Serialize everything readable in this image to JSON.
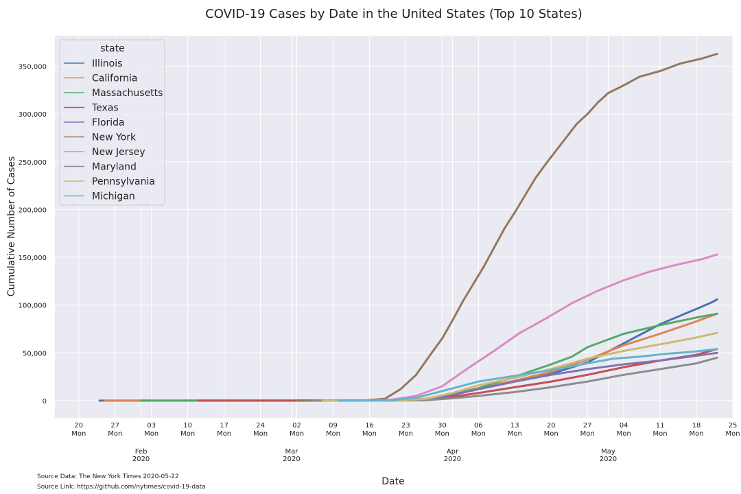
{
  "chart_data": {
    "type": "line",
    "title": "COVID-19 Cases by Date in the United States (Top 10 States)",
    "xlabel": "Date",
    "ylabel": "Cumulative Number of Cases",
    "ylim": [
      -18000,
      382000
    ],
    "xlim_days": [
      -4.6,
      126
    ],
    "date_origin": "2020-01-20",
    "y_ticks": [
      0,
      50000,
      100000,
      150000,
      200000,
      250000,
      300000,
      350000
    ],
    "y_tick_labels": [
      "0",
      "50,000",
      "100,000",
      "150,000",
      "200,000",
      "250,000",
      "300,000",
      "350,000"
    ],
    "x_ticks": [
      {
        "d": 0,
        "day": "20",
        "wd": "Mon"
      },
      {
        "d": 7,
        "day": "27",
        "wd": "Mon"
      },
      {
        "d": 14,
        "day": "03",
        "wd": "Mon"
      },
      {
        "d": 21,
        "day": "10",
        "wd": "Mon"
      },
      {
        "d": 28,
        "day": "17",
        "wd": "Mon"
      },
      {
        "d": 35,
        "day": "24",
        "wd": "Mon"
      },
      {
        "d": 42,
        "day": "02",
        "wd": "Mon"
      },
      {
        "d": 49,
        "day": "09",
        "wd": "Mon"
      },
      {
        "d": 56,
        "day": "16",
        "wd": "Mon"
      },
      {
        "d": 63,
        "day": "23",
        "wd": "Mon"
      },
      {
        "d": 70,
        "day": "30",
        "wd": "Mon"
      },
      {
        "d": 77,
        "day": "06",
        "wd": "Mon"
      },
      {
        "d": 84,
        "day": "13",
        "wd": "Mon"
      },
      {
        "d": 91,
        "day": "20",
        "wd": "Mon"
      },
      {
        "d": 98,
        "day": "27",
        "wd": "Mon"
      },
      {
        "d": 105,
        "day": "04",
        "wd": "Mon"
      },
      {
        "d": 112,
        "day": "11",
        "wd": "Mon"
      },
      {
        "d": 119,
        "day": "18",
        "wd": "Mon"
      },
      {
        "d": 126,
        "day": "25",
        "wd": "Mon"
      }
    ],
    "month_ticks": [
      {
        "d": 12,
        "month": "Feb",
        "year": "2020"
      },
      {
        "d": 41,
        "month": "Mar",
        "year": "2020"
      },
      {
        "d": 72,
        "month": "Apr",
        "year": "2020"
      },
      {
        "d": 102,
        "month": "May",
        "year": "2020"
      }
    ],
    "legend_title": "state",
    "legend_position": "top-left",
    "series": [
      {
        "name": "Illinois",
        "color": "#4c72b0",
        "start": 4,
        "points": [
          [
            4,
            0
          ],
          [
            42,
            0
          ],
          [
            60,
            300
          ],
          [
            67,
            1500
          ],
          [
            72,
            6000
          ],
          [
            77,
            12000
          ],
          [
            84,
            20000
          ],
          [
            91,
            28000
          ],
          [
            98,
            40000
          ],
          [
            105,
            60000
          ],
          [
            112,
            80000
          ],
          [
            119,
            96000
          ],
          [
            122,
            103000
          ],
          [
            123,
            106000
          ]
        ]
      },
      {
        "name": "California",
        "color": "#dd8452",
        "start": 5,
        "points": [
          [
            5,
            0
          ],
          [
            42,
            0
          ],
          [
            60,
            300
          ],
          [
            67,
            2000
          ],
          [
            72,
            7000
          ],
          [
            77,
            13000
          ],
          [
            84,
            21000
          ],
          [
            91,
            30000
          ],
          [
            98,
            43000
          ],
          [
            105,
            58000
          ],
          [
            112,
            70000
          ],
          [
            119,
            83000
          ],
          [
            123,
            91000
          ]
        ]
      },
      {
        "name": "Massachusetts",
        "color": "#55a868",
        "start": 12,
        "points": [
          [
            12,
            0
          ],
          [
            45,
            0
          ],
          [
            60,
            200
          ],
          [
            67,
            1000
          ],
          [
            72,
            6000
          ],
          [
            77,
            13000
          ],
          [
            84,
            25000
          ],
          [
            91,
            38000
          ],
          [
            95,
            46000
          ],
          [
            98,
            56000
          ],
          [
            105,
            70000
          ],
          [
            112,
            79000
          ],
          [
            119,
            87000
          ],
          [
            123,
            91000
          ]
        ]
      },
      {
        "name": "Texas",
        "color": "#c44e52",
        "start": 23,
        "points": [
          [
            23,
            0
          ],
          [
            55,
            0
          ],
          [
            60,
            200
          ],
          [
            67,
            1000
          ],
          [
            72,
            4000
          ],
          [
            77,
            8000
          ],
          [
            84,
            14000
          ],
          [
            91,
            20000
          ],
          [
            98,
            27000
          ],
          [
            105,
            35000
          ],
          [
            112,
            42000
          ],
          [
            119,
            48000
          ],
          [
            123,
            54000
          ]
        ]
      },
      {
        "name": "Florida",
        "color": "#8172b3",
        "start": 42,
        "points": [
          [
            42,
            0
          ],
          [
            55,
            0
          ],
          [
            60,
            300
          ],
          [
            67,
            1500
          ],
          [
            72,
            6000
          ],
          [
            77,
            12000
          ],
          [
            84,
            20000
          ],
          [
            91,
            27000
          ],
          [
            98,
            33000
          ],
          [
            105,
            38000
          ],
          [
            112,
            42000
          ],
          [
            119,
            47000
          ],
          [
            123,
            50000
          ]
        ]
      },
      {
        "name": "New York",
        "color": "#937860",
        "start": 42,
        "points": [
          [
            42,
            0
          ],
          [
            55,
            200
          ],
          [
            59,
            2000
          ],
          [
            62,
            12000
          ],
          [
            65,
            27000
          ],
          [
            68,
            50000
          ],
          [
            70,
            65000
          ],
          [
            72,
            84000
          ],
          [
            74,
            104000
          ],
          [
            76,
            122000
          ],
          [
            78,
            140000
          ],
          [
            80,
            160000
          ],
          [
            82,
            180000
          ],
          [
            84,
            197000
          ],
          [
            86,
            215000
          ],
          [
            88,
            233000
          ],
          [
            90,
            248000
          ],
          [
            92,
            262000
          ],
          [
            94,
            276000
          ],
          [
            96,
            290000
          ],
          [
            98,
            300000
          ],
          [
            100,
            312000
          ],
          [
            102,
            322000
          ],
          [
            105,
            330000
          ],
          [
            108,
            339000
          ],
          [
            112,
            345000
          ],
          [
            116,
            353000
          ],
          [
            120,
            358000
          ],
          [
            123,
            363000
          ]
        ]
      },
      {
        "name": "New Jersey",
        "color": "#da8bc3",
        "start": 46,
        "points": [
          [
            46,
            0
          ],
          [
            55,
            0
          ],
          [
            60,
            800
          ],
          [
            65,
            5000
          ],
          [
            70,
            15000
          ],
          [
            75,
            34000
          ],
          [
            80,
            52000
          ],
          [
            85,
            71000
          ],
          [
            90,
            86000
          ],
          [
            95,
            102000
          ],
          [
            100,
            115000
          ],
          [
            105,
            126000
          ],
          [
            110,
            135000
          ],
          [
            115,
            142000
          ],
          [
            120,
            148000
          ],
          [
            123,
            153000
          ]
        ]
      },
      {
        "name": "Maryland",
        "color": "#8c8c8c",
        "start": 45,
        "points": [
          [
            45,
            0
          ],
          [
            57,
            0
          ],
          [
            62,
            100
          ],
          [
            67,
            500
          ],
          [
            72,
            2500
          ],
          [
            77,
            5000
          ],
          [
            84,
            9000
          ],
          [
            91,
            14000
          ],
          [
            98,
            20000
          ],
          [
            105,
            27000
          ],
          [
            112,
            33000
          ],
          [
            119,
            39000
          ],
          [
            123,
            45000
          ]
        ]
      },
      {
        "name": "Pennsylvania",
        "color": "#ccb974",
        "start": 47,
        "points": [
          [
            47,
            0
          ],
          [
            57,
            0
          ],
          [
            62,
            300
          ],
          [
            67,
            2000
          ],
          [
            72,
            8000
          ],
          [
            77,
            16000
          ],
          [
            84,
            24000
          ],
          [
            91,
            33000
          ],
          [
            98,
            44000
          ],
          [
            105,
            52000
          ],
          [
            112,
            59000
          ],
          [
            119,
            66000
          ],
          [
            123,
            71000
          ]
        ]
      },
      {
        "name": "Michigan",
        "color": "#64b5cd",
        "start": 50,
        "points": [
          [
            50,
            0
          ],
          [
            55,
            0
          ],
          [
            60,
            500
          ],
          [
            65,
            3000
          ],
          [
            70,
            10000
          ],
          [
            77,
            20000
          ],
          [
            84,
            26000
          ],
          [
            91,
            32000
          ],
          [
            98,
            39000
          ],
          [
            103,
            44000
          ],
          [
            108,
            46000
          ],
          [
            113,
            49000
          ],
          [
            118,
            51000
          ],
          [
            123,
            54000
          ]
        ]
      }
    ]
  },
  "source": {
    "data": "Source Data: The New York Times 2020-05-22",
    "link": "Source Link: https://github.com/nytimes/covid-19-data"
  }
}
